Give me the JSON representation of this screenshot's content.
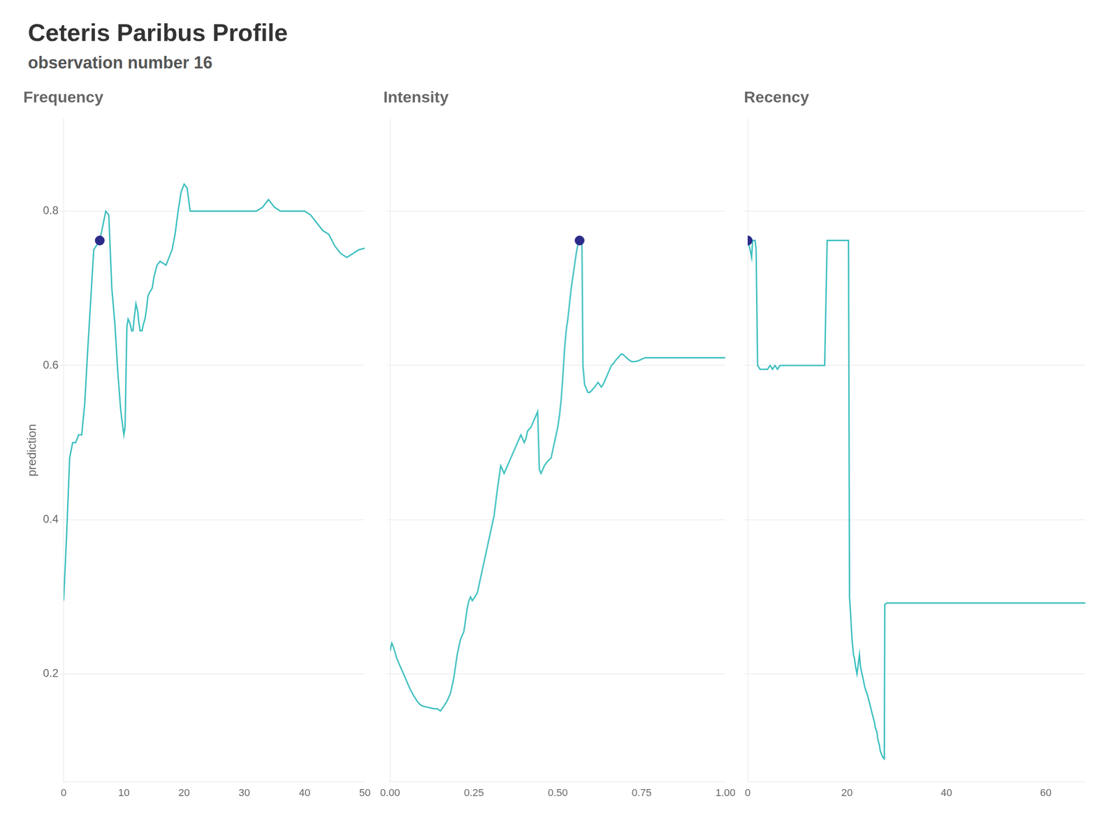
{
  "title": "Ceteris Paribus Profile",
  "subtitle": "observation number 16",
  "chart_data": [
    {
      "type": "line",
      "title": "Frequency",
      "ylabel": "prediction",
      "xlim": [
        0,
        50
      ],
      "xticks": [
        0,
        10,
        20,
        30,
        40,
        50
      ],
      "ylim": [
        0.06,
        0.92
      ],
      "yticks": [
        0.2,
        0.4,
        0.6,
        0.8
      ],
      "grid": true,
      "series": [
        {
          "type": "line",
          "color": "#3dbfbf",
          "x": [
            0,
            0.5,
            1,
            1.5,
            2,
            2.5,
            3,
            3.5,
            4,
            5,
            6,
            7,
            7.5,
            8,
            8.5,
            9,
            9.5,
            10,
            10.2,
            10.5,
            10.7,
            11,
            11.3,
            11.5,
            11.7,
            12,
            12.3,
            12.5,
            12.7,
            13,
            13.3,
            13.5,
            13.7,
            14,
            14.3,
            14.7,
            15,
            15.5,
            16,
            17,
            17.5,
            18,
            18.5,
            19,
            19.5,
            20,
            20.5,
            21,
            21.5,
            22,
            22.5,
            23,
            23.5,
            24,
            25,
            26,
            27,
            28,
            29,
            30,
            31,
            32,
            33,
            33.5,
            34,
            34.5,
            35,
            36,
            37,
            38,
            39,
            40,
            41,
            42,
            43,
            44,
            45,
            46,
            47,
            48,
            49,
            50
          ],
          "values": [
            0.295,
            0.38,
            0.48,
            0.5,
            0.5,
            0.51,
            0.51,
            0.55,
            0.62,
            0.75,
            0.762,
            0.8,
            0.795,
            0.7,
            0.655,
            0.59,
            0.54,
            0.51,
            0.52,
            0.65,
            0.66,
            0.655,
            0.645,
            0.645,
            0.66,
            0.68,
            0.67,
            0.655,
            0.645,
            0.645,
            0.655,
            0.66,
            0.67,
            0.69,
            0.695,
            0.7,
            0.715,
            0.73,
            0.735,
            0.73,
            0.74,
            0.75,
            0.77,
            0.8,
            0.825,
            0.835,
            0.83,
            0.8,
            0.8,
            0.8,
            0.8,
            0.8,
            0.8,
            0.8,
            0.8,
            0.8,
            0.8,
            0.8,
            0.8,
            0.8,
            0.8,
            0.8,
            0.805,
            0.81,
            0.815,
            0.81,
            0.805,
            0.8,
            0.8,
            0.8,
            0.8,
            0.8,
            0.795,
            0.785,
            0.775,
            0.77,
            0.755,
            0.745,
            0.74,
            0.745,
            0.75,
            0.752
          ]
        },
        {
          "type": "scatter",
          "color": "#2b2b8a",
          "x": [
            6
          ],
          "values": [
            0.762
          ]
        }
      ]
    },
    {
      "type": "line",
      "title": "Intensity",
      "xlim": [
        0.0,
        1.0
      ],
      "xticks": [
        {
          "value": 0.0,
          "label": "0.00"
        },
        {
          "value": 0.25,
          "label": "0.25"
        },
        {
          "value": 0.5,
          "label": "0.50"
        },
        {
          "value": 0.75,
          "label": "0.75"
        },
        {
          "value": 1.0,
          "label": "1.00"
        }
      ],
      "ylim": [
        0.06,
        0.92
      ],
      "yticks": [
        0.2,
        0.4,
        0.6,
        0.8
      ],
      "grid": true,
      "tick_labels": "x",
      "series": [
        {
          "type": "line",
          "color": "#3dbfbf",
          "x": [
            0.0,
            0.005,
            0.01,
            0.02,
            0.03,
            0.04,
            0.05,
            0.06,
            0.07,
            0.08,
            0.09,
            0.1,
            0.11,
            0.12,
            0.13,
            0.14,
            0.15,
            0.155,
            0.16,
            0.17,
            0.18,
            0.19,
            0.2,
            0.21,
            0.22,
            0.23,
            0.235,
            0.24,
            0.245,
            0.25,
            0.26,
            0.27,
            0.28,
            0.29,
            0.3,
            0.31,
            0.32,
            0.325,
            0.33,
            0.335,
            0.34,
            0.35,
            0.36,
            0.37,
            0.375,
            0.38,
            0.385,
            0.39,
            0.395,
            0.4,
            0.405,
            0.41,
            0.42,
            0.43,
            0.435,
            0.44,
            0.445,
            0.45,
            0.455,
            0.46,
            0.465,
            0.47,
            0.475,
            0.48,
            0.485,
            0.49,
            0.495,
            0.5,
            0.505,
            0.51,
            0.515,
            0.52,
            0.525,
            0.53,
            0.535,
            0.54,
            0.545,
            0.55,
            0.555,
            0.56,
            0.562,
            0.565,
            0.568,
            0.57,
            0.572,
            0.575,
            0.58,
            0.585,
            0.59,
            0.595,
            0.6,
            0.61,
            0.615,
            0.62,
            0.625,
            0.63,
            0.635,
            0.64,
            0.645,
            0.65,
            0.655,
            0.66,
            0.665,
            0.67,
            0.675,
            0.68,
            0.685,
            0.69,
            0.695,
            0.7,
            0.71,
            0.72,
            0.73,
            0.74,
            0.75,
            0.76,
            0.77,
            0.78,
            0.79,
            0.8,
            0.85,
            0.9,
            0.95,
            1.0
          ],
          "values": [
            0.23,
            0.24,
            0.235,
            0.22,
            0.21,
            0.2,
            0.19,
            0.18,
            0.172,
            0.165,
            0.16,
            0.158,
            0.157,
            0.156,
            0.155,
            0.155,
            0.152,
            0.155,
            0.158,
            0.165,
            0.175,
            0.195,
            0.225,
            0.245,
            0.255,
            0.285,
            0.295,
            0.3,
            0.295,
            0.298,
            0.305,
            0.325,
            0.345,
            0.365,
            0.385,
            0.405,
            0.44,
            0.455,
            0.47,
            0.465,
            0.46,
            0.47,
            0.48,
            0.49,
            0.495,
            0.5,
            0.505,
            0.51,
            0.505,
            0.5,
            0.505,
            0.515,
            0.52,
            0.53,
            0.535,
            0.54,
            0.465,
            0.46,
            0.465,
            0.47,
            0.473,
            0.476,
            0.478,
            0.48,
            0.49,
            0.5,
            0.51,
            0.52,
            0.535,
            0.555,
            0.585,
            0.62,
            0.645,
            0.66,
            0.68,
            0.7,
            0.715,
            0.73,
            0.745,
            0.757,
            0.762,
            0.762,
            0.762,
            0.762,
            0.762,
            0.6,
            0.575,
            0.57,
            0.565,
            0.565,
            0.567,
            0.572,
            0.575,
            0.578,
            0.575,
            0.572,
            0.575,
            0.58,
            0.585,
            0.59,
            0.595,
            0.6,
            0.602,
            0.605,
            0.608,
            0.61,
            0.613,
            0.615,
            0.614,
            0.612,
            0.608,
            0.605,
            0.605,
            0.606,
            0.608,
            0.61,
            0.61,
            0.61,
            0.61,
            0.61,
            0.61,
            0.61,
            0.61,
            0.61
          ]
        },
        {
          "type": "scatter",
          "color": "#2b2b8a",
          "x": [
            0.565
          ],
          "values": [
            0.762
          ]
        }
      ]
    },
    {
      "type": "line",
      "title": "Recency",
      "xlim": [
        0,
        68
      ],
      "xticks": [
        0,
        20,
        40,
        60
      ],
      "ylim": [
        0.06,
        0.92
      ],
      "yticks": [
        0.2,
        0.4,
        0.6,
        0.8
      ],
      "grid": true,
      "tick_labels": "x",
      "series": [
        {
          "type": "line",
          "color": "#3dbfbf",
          "x": [
            0.0,
            0.3,
            0.5,
            0.8,
            1.0,
            1.2,
            1.3,
            1.5,
            1.7,
            2.0,
            2.5,
            3.0,
            3.5,
            4.0,
            4.5,
            5.0,
            5.5,
            6.0,
            6.5,
            7.0,
            7.5,
            8.0,
            8.5,
            9.0,
            9.5,
            10.0,
            10.5,
            11.0,
            11.5,
            12.0,
            12.5,
            13.0,
            13.5,
            14.0,
            14.5,
            15.0,
            15.5,
            16.0,
            16.5,
            17.0,
            17.3,
            17.5,
            18.0,
            18.5,
            19.0,
            19.5,
            20.0,
            20.3,
            20.5,
            20.7,
            21.0,
            21.3,
            21.5,
            21.7,
            22.0,
            22.3,
            22.5,
            22.7,
            23.0,
            23.2,
            23.5,
            23.7,
            24.0,
            24.3,
            24.5,
            24.7,
            25.0,
            25.2,
            25.5,
            25.7,
            26.0,
            26.2,
            26.5,
            26.7,
            27.0,
            27.2,
            27.5,
            27.6,
            28.0,
            29.0,
            30.0,
            35.0,
            40.0,
            45.0,
            50.0,
            55.0,
            60.0,
            65.0,
            68.0
          ],
          "values": [
            0.762,
            0.755,
            0.75,
            0.74,
            0.762,
            0.762,
            0.762,
            0.762,
            0.75,
            0.6,
            0.595,
            0.595,
            0.595,
            0.595,
            0.6,
            0.595,
            0.6,
            0.595,
            0.6,
            0.6,
            0.6,
            0.6,
            0.6,
            0.6,
            0.6,
            0.6,
            0.6,
            0.6,
            0.6,
            0.6,
            0.6,
            0.6,
            0.6,
            0.6,
            0.6,
            0.6,
            0.6,
            0.762,
            0.762,
            0.762,
            0.762,
            0.762,
            0.762,
            0.762,
            0.762,
            0.762,
            0.762,
            0.762,
            0.3,
            0.28,
            0.245,
            0.225,
            0.22,
            0.21,
            0.2,
            0.215,
            0.225,
            0.21,
            0.2,
            0.195,
            0.185,
            0.18,
            0.175,
            0.168,
            0.163,
            0.158,
            0.15,
            0.145,
            0.138,
            0.13,
            0.125,
            0.115,
            0.108,
            0.1,
            0.095,
            0.092,
            0.09,
            0.29,
            0.292,
            0.292,
            0.292,
            0.292,
            0.292,
            0.292,
            0.292,
            0.292,
            0.292,
            0.292,
            0.292
          ]
        },
        {
          "type": "scatter",
          "color": "#2b2b8a",
          "x": [
            0.0
          ],
          "values": [
            0.762
          ]
        }
      ]
    }
  ]
}
